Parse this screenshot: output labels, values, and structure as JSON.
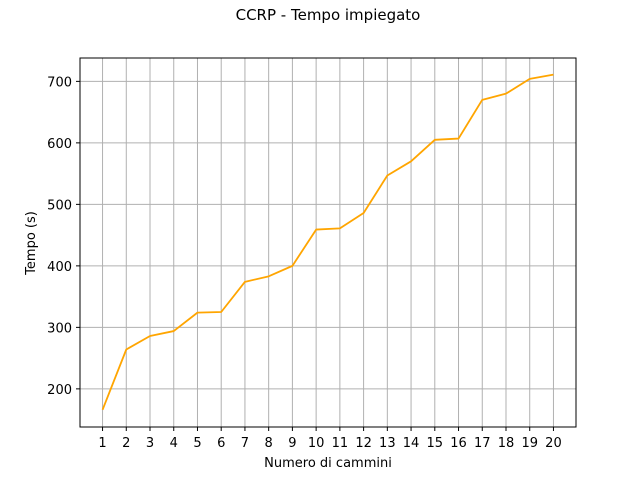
{
  "chart_data": {
    "type": "line",
    "title": "CCRP - Tempo impiegato",
    "xlabel": "Numero di cammini",
    "ylabel": "Tempo (s)",
    "x": [
      1,
      2,
      3,
      4,
      5,
      6,
      7,
      8,
      9,
      10,
      11,
      12,
      13,
      14,
      15,
      16,
      17,
      18,
      19,
      20
    ],
    "series": [
      {
        "values": [
          166,
          264,
          286,
          294,
          324,
          325,
          374,
          383,
          400,
          459,
          461,
          486,
          547,
          570,
          605,
          607,
          670,
          680,
          704,
          711
        ],
        "color": "#ffa500"
      }
    ],
    "xlim": [
      0.05,
      20.95
    ],
    "ylim": [
      138,
      738
    ],
    "xticks": [
      "1",
      "2",
      "3",
      "4",
      "5",
      "6",
      "7",
      "8",
      "9",
      "10",
      "11",
      "12",
      "13",
      "14",
      "15",
      "16",
      "17",
      "18",
      "19",
      "20"
    ],
    "yticks": [
      200,
      300,
      400,
      500,
      600,
      700
    ],
    "grid": true,
    "grid_color": "#b0b0b0",
    "legend": false
  }
}
